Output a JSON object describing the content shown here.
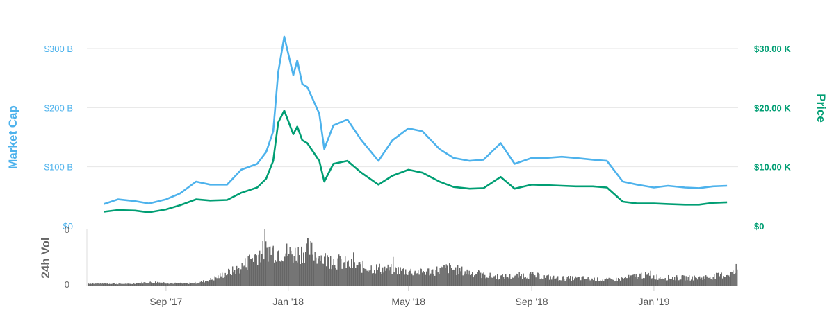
{
  "chart_data": {
    "type": "line",
    "x_ticks": [
      "Sep '17",
      "Jan '18",
      "May '18",
      "Sep '18",
      "Jan '19"
    ],
    "left_axis": {
      "label": "Market Cap",
      "ticks": [
        "$0",
        "$100 B",
        "$200 B",
        "$300 B"
      ],
      "range": [
        0,
        300
      ],
      "color": "#4db2ec"
    },
    "right_axis": {
      "label": "Price",
      "ticks": [
        "$0",
        "$10.00 K",
        "$20.00 K",
        "$30.00 K"
      ],
      "range": [
        0,
        30000
      ],
      "color": "#009e73"
    },
    "volume_axis": {
      "label": "24h Vol",
      "ticks": [
        "0",
        "0"
      ],
      "color": "#666666"
    },
    "grid": true,
    "series": [
      {
        "name": "Market Cap",
        "axis": "left",
        "color": "#4db2ec",
        "x": [
          "2017-07-01",
          "2017-07-15",
          "2017-08-01",
          "2017-08-15",
          "2017-09-01",
          "2017-09-15",
          "2017-10-01",
          "2017-10-15",
          "2017-11-01",
          "2017-11-15",
          "2017-12-01",
          "2017-12-10",
          "2017-12-17",
          "2017-12-22",
          "2017-12-28",
          "2018-01-06",
          "2018-01-10",
          "2018-01-15",
          "2018-01-20",
          "2018-02-01",
          "2018-02-06",
          "2018-02-15",
          "2018-03-01",
          "2018-03-15",
          "2018-04-01",
          "2018-04-15",
          "2018-05-01",
          "2018-05-15",
          "2018-06-01",
          "2018-06-15",
          "2018-07-01",
          "2018-07-15",
          "2018-08-01",
          "2018-08-15",
          "2018-09-01",
          "2018-09-15",
          "2018-10-01",
          "2018-10-15",
          "2018-11-01",
          "2018-11-15",
          "2018-12-01",
          "2018-12-15",
          "2019-01-01",
          "2019-01-15",
          "2019-02-01",
          "2019-02-15",
          "2019-03-01",
          "2019-03-15"
        ],
        "values": [
          37,
          45,
          42,
          38,
          45,
          55,
          75,
          70,
          70,
          95,
          105,
          125,
          160,
          260,
          320,
          255,
          280,
          240,
          235,
          190,
          130,
          170,
          180,
          145,
          110,
          145,
          165,
          160,
          130,
          115,
          110,
          112,
          140,
          105,
          115,
          115,
          117,
          115,
          112,
          110,
          75,
          70,
          65,
          68,
          65,
          64,
          67,
          68
        ]
      },
      {
        "name": "Price",
        "axis": "right",
        "color": "#009e73",
        "x": [
          "2017-07-01",
          "2017-07-15",
          "2017-08-01",
          "2017-08-15",
          "2017-09-01",
          "2017-09-15",
          "2017-10-01",
          "2017-10-15",
          "2017-11-01",
          "2017-11-15",
          "2017-12-01",
          "2017-12-10",
          "2017-12-17",
          "2017-12-22",
          "2017-12-28",
          "2018-01-06",
          "2018-01-10",
          "2018-01-15",
          "2018-01-20",
          "2018-02-01",
          "2018-02-06",
          "2018-02-15",
          "2018-03-01",
          "2018-03-15",
          "2018-04-01",
          "2018-04-15",
          "2018-05-01",
          "2018-05-15",
          "2018-06-01",
          "2018-06-15",
          "2018-07-01",
          "2018-07-15",
          "2018-08-01",
          "2018-08-15",
          "2018-09-01",
          "2018-09-15",
          "2018-10-01",
          "2018-10-15",
          "2018-11-01",
          "2018-11-15",
          "2018-12-01",
          "2018-12-15",
          "2019-01-01",
          "2019-01-15",
          "2019-02-01",
          "2019-02-15",
          "2019-03-01",
          "2019-03-15"
        ],
        "values": [
          2400,
          2700,
          2600,
          2300,
          2800,
          3500,
          4500,
          4300,
          4400,
          5600,
          6500,
          8000,
          11000,
          17500,
          19500,
          15500,
          16800,
          14500,
          14000,
          11000,
          7500,
          10500,
          11000,
          9000,
          7000,
          8500,
          9500,
          9000,
          7500,
          6600,
          6300,
          6400,
          8300,
          6300,
          7000,
          6900,
          6800,
          6700,
          6700,
          6500,
          4100,
          3800,
          3800,
          3700,
          3600,
          3600,
          3900,
          4000
        ]
      }
    ],
    "volume": {
      "name": "24h Vol",
      "color": "#666666",
      "relative_levels": [
        0.04,
        0.04,
        0.04,
        0.03,
        0.06,
        0.07,
        0.05,
        0.04,
        0.06,
        0.13,
        0.25,
        0.35,
        0.6,
        0.75,
        0.7,
        0.65,
        0.75,
        0.55,
        0.5,
        0.42,
        0.38,
        0.35,
        0.33,
        0.3,
        0.28,
        0.3,
        0.36,
        0.3,
        0.25,
        0.2,
        0.18,
        0.2,
        0.22,
        0.18,
        0.15,
        0.15,
        0.15,
        0.12,
        0.12,
        0.16,
        0.22,
        0.18,
        0.16,
        0.16,
        0.16,
        0.18,
        0.22,
        0.28
      ]
    }
  }
}
